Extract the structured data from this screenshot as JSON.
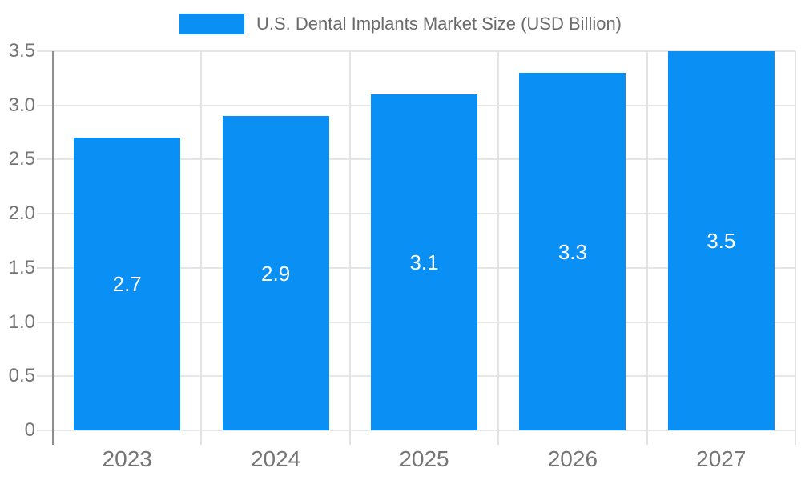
{
  "legend": {
    "title": "U.S. Dental Implants Market Size (USD Billion)"
  },
  "chart_data": {
    "type": "bar",
    "title": "U.S. Dental Implants Market Size (USD Billion)",
    "categories": [
      "2023",
      "2024",
      "2025",
      "2026",
      "2027"
    ],
    "series": [
      {
        "name": "U.S. Dental Implants Market Size (USD Billion)",
        "values": [
          2.7,
          2.9,
          3.1,
          3.3,
          3.5
        ]
      }
    ],
    "data_labels": [
      "2.7",
      "2.9",
      "3.1",
      "3.3",
      "3.5"
    ],
    "xlabel": "",
    "ylabel": "",
    "ylim": [
      0,
      3.5
    ],
    "yticks": [
      0,
      0.5,
      1.0,
      1.5,
      2.0,
      2.5,
      3.0,
      3.5
    ],
    "ytick_labels": [
      "0",
      "0.5",
      "1.0",
      "1.5",
      "2.0",
      "2.5",
      "3.0",
      "3.5"
    ],
    "grid": true,
    "legend_position": "top",
    "colors": {
      "bar": "#0a8ff5",
      "axis_text": "#757575",
      "legend_text": "#6b6b6b",
      "gridline": "#e6e6e6",
      "axis_line": "#8f8f8f",
      "bar_label": "#ffffff"
    }
  }
}
